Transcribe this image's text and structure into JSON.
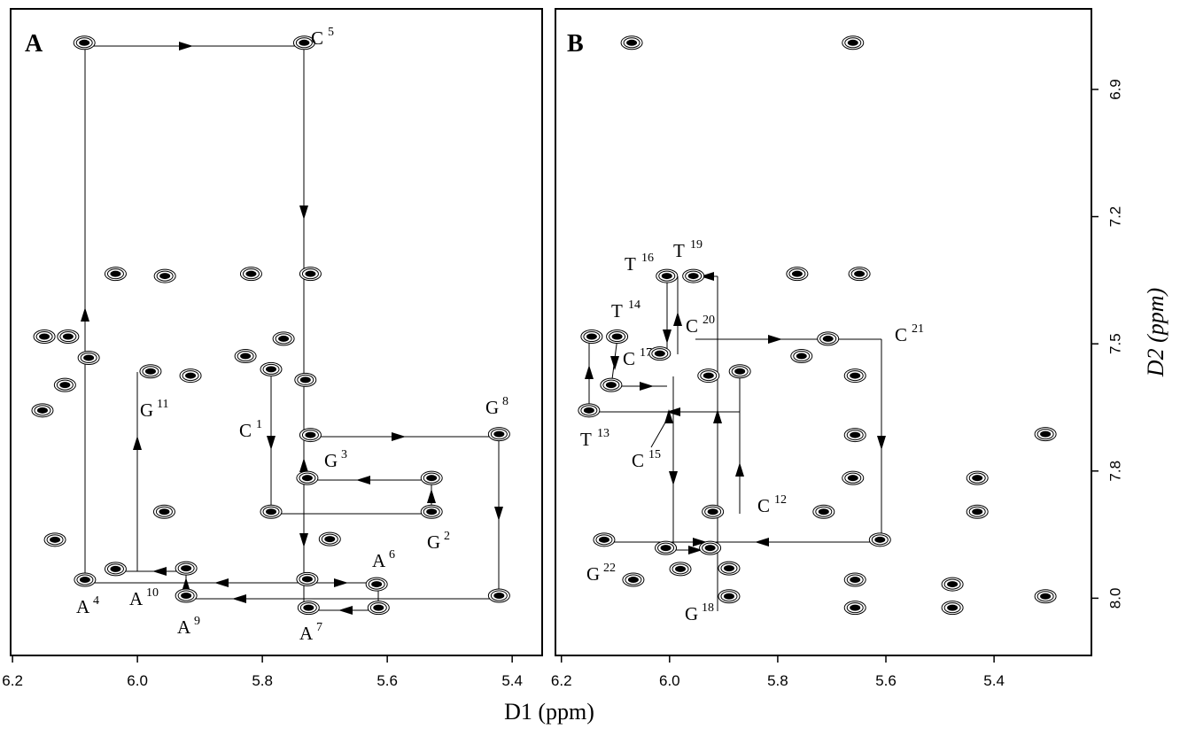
{
  "chart_data": [
    {
      "type": "scatter",
      "panel_label": "A",
      "x_label": "D1 (ppm)",
      "xlim": [
        6.203,
        5.352
      ],
      "xticks": [
        6.2,
        {
          "value": 6,
          "label": "6.0"
        },
        5.8,
        5.6,
        5.4
      ],
      "x": [
        6.085,
        5.733,
        6.035,
        5.956,
        5.818,
        5.723,
        6.149,
        6.111,
        6.116,
        6.152,
        6.078,
        5.979,
        5.915,
        5.827,
        5.786,
        5.766,
        5.731,
        5.723,
        5.421,
        5.728,
        5.529,
        5.529,
        5.786,
        5.957,
        6.132,
        5.692,
        6.035,
        5.922,
        6.084,
        5.728,
        5.617,
        5.922,
        5.421,
        5.726,
        5.614
      ],
      "y": [
        6.79,
        6.79,
        7.335,
        7.34,
        7.335,
        7.335,
        7.483,
        7.483,
        7.597,
        7.657,
        7.533,
        7.565,
        7.575,
        7.529,
        7.56,
        7.488,
        7.585,
        7.715,
        7.713,
        7.811,
        7.811,
        7.864,
        7.864,
        7.864,
        7.908,
        7.907,
        7.954,
        7.953,
        7.971,
        7.97,
        7.978,
        7.996,
        7.996,
        8.015,
        8.015
      ],
      "annotations": [
        {
          "text": "C",
          "sup": "5"
        },
        {
          "text": "G",
          "sup": "11"
        },
        {
          "text": "C",
          "sup": "1"
        },
        {
          "text": "G",
          "sup": "8"
        },
        {
          "text": "G",
          "sup": "3"
        },
        {
          "text": "G",
          "sup": "2"
        },
        {
          "text": "A",
          "sup": "6"
        },
        {
          "text": "A",
          "sup": "4"
        },
        {
          "text": "A",
          "sup": "10"
        },
        {
          "text": "A",
          "sup": "9"
        },
        {
          "text": "A",
          "sup": "7"
        }
      ]
    },
    {
      "type": "scatter",
      "panel_label": "B",
      "y_label": "D2 (ppm)",
      "xlim": [
        6.211,
        5.22
      ],
      "xticks": [
        6.2,
        {
          "value": 6,
          "label": "6.0"
        },
        5.8,
        5.6,
        5.4
      ],
      "ylim": [
        6.71,
        8.09
      ],
      "yticks": [
        6.9,
        7.2,
        7.5,
        7.8,
        {
          "value": 8,
          "label": "8.0"
        }
      ],
      "x": [
        6.07,
        5.661,
        6.005,
        5.956,
        5.764,
        5.649,
        6.144,
        6.097,
        6.108,
        6.149,
        6.018,
        5.928,
        5.87,
        5.756,
        5.707,
        5.657,
        5.657,
        5.305,
        5.661,
        5.431,
        5.431,
        5.715,
        5.92,
        6.121,
        5.611,
        6.007,
        5.925,
        5.98,
        5.89,
        6.067,
        5.657,
        5.477,
        5.89,
        5.305,
        5.657,
        5.477
      ],
      "y": [
        6.79,
        6.79,
        7.34,
        7.34,
        7.335,
        7.335,
        7.483,
        7.483,
        7.597,
        7.657,
        7.523,
        7.575,
        7.565,
        7.529,
        7.488,
        7.575,
        7.715,
        7.713,
        7.811,
        7.811,
        7.864,
        7.864,
        7.864,
        7.908,
        7.908,
        7.921,
        7.921,
        7.954,
        7.953,
        7.971,
        7.971,
        7.978,
        7.997,
        7.997,
        8.015,
        8.015
      ],
      "annotations": [
        {
          "text": "T",
          "sup": "16"
        },
        {
          "text": "T",
          "sup": "19"
        },
        {
          "text": "T",
          "sup": "14"
        },
        {
          "text": "C",
          "sup": "17"
        },
        {
          "text": "C",
          "sup": "20"
        },
        {
          "text": "C",
          "sup": "21"
        },
        {
          "text": "T",
          "sup": "13"
        },
        {
          "text": "C",
          "sup": "15"
        },
        {
          "text": "C",
          "sup": "12"
        },
        {
          "text": "G",
          "sup": "22"
        },
        {
          "text": "G",
          "sup": "18"
        }
      ]
    }
  ]
}
